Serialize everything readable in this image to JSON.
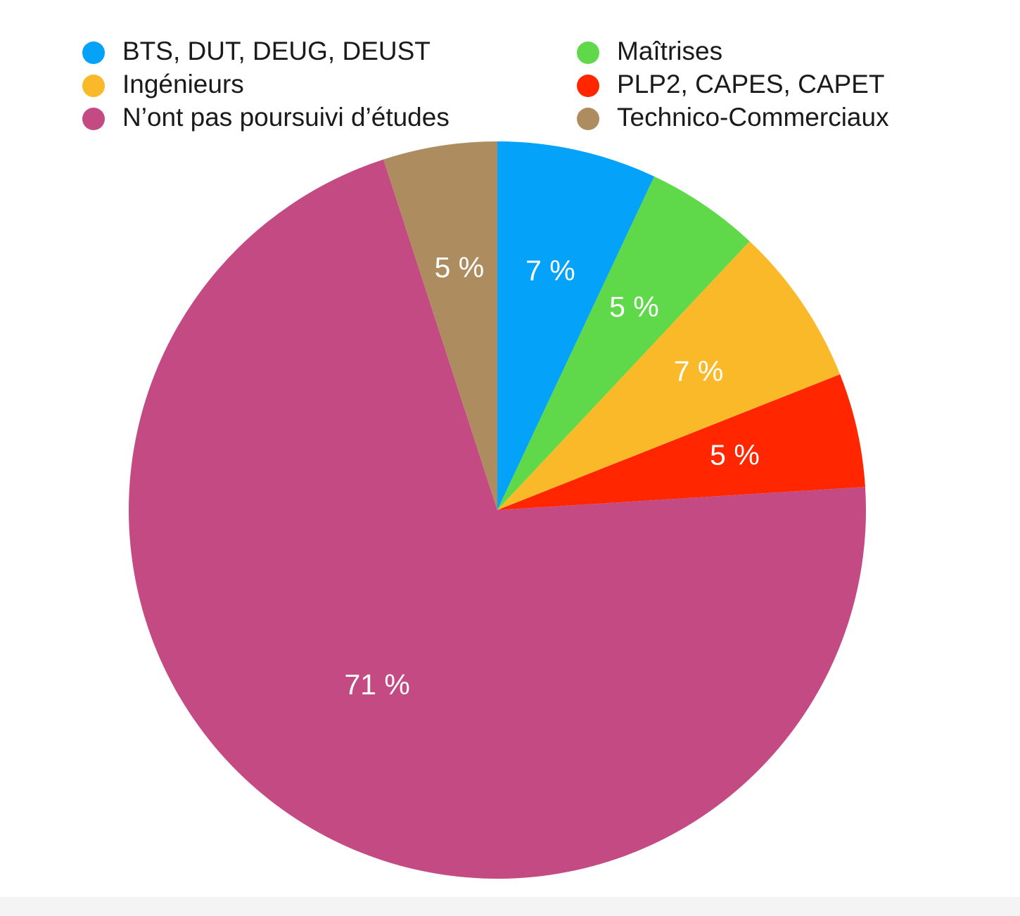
{
  "chart_data": {
    "type": "pie",
    "title": "",
    "legend_position": "top",
    "start_angle_deg": 0,
    "direction": "clockwise",
    "slices": [
      {
        "label": "BTS, DUT, DEUG, DEUST",
        "value": 7,
        "display": "7 %",
        "color": "#04a2f8"
      },
      {
        "label": "Maîtrises",
        "value": 5,
        "display": "5 %",
        "color": "#5fd94a"
      },
      {
        "label": "Ingénieurs",
        "value": 7,
        "display": "7 %",
        "color": "#fab929"
      },
      {
        "label": "PLP2, CAPES, CAPET",
        "value": 5,
        "display": "5 %",
        "color": "#ff2600"
      },
      {
        "label": "N’ont pas poursuivi d’études",
        "value": 71,
        "display": "71 %",
        "color": "#c44a84"
      },
      {
        "label": "Technico-Commerciaux",
        "value": 5,
        "display": "5 %",
        "color": "#ad8d5f"
      }
    ],
    "legend_order": [
      "BTS, DUT, DEUG, DEUST",
      "Maîtrises",
      "Ingénieurs",
      "PLP2, CAPES, CAPET",
      "N’ont pas poursuivi d’études",
      "Technico-Commerciaux"
    ]
  }
}
